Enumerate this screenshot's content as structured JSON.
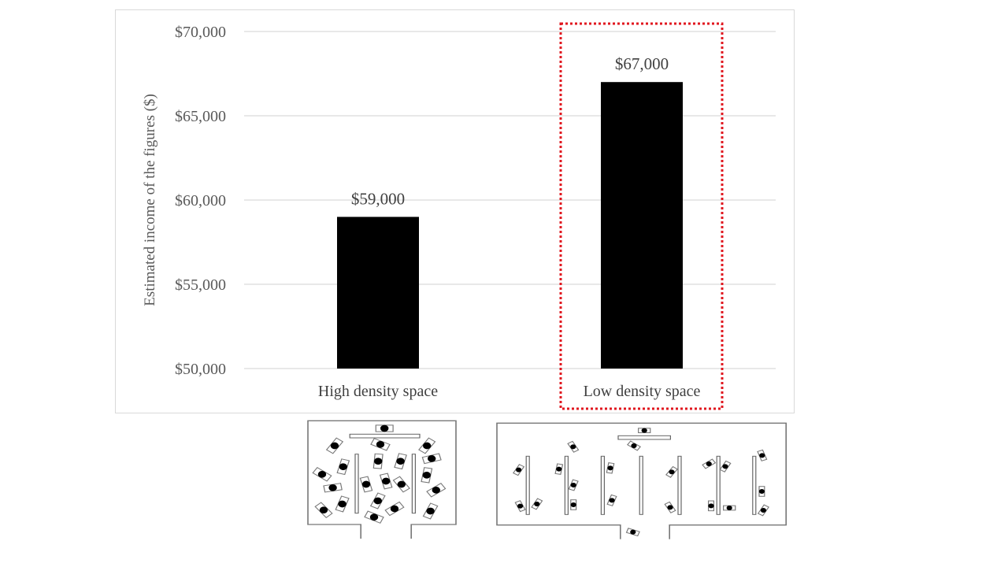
{
  "chart_data": {
    "type": "bar",
    "title": "",
    "xlabel": "",
    "ylabel": "Estimated income of the figures ($)",
    "categories": [
      "High density space",
      "Low density space"
    ],
    "values": [
      59000,
      67000
    ],
    "data_labels": [
      "$59,000",
      "$67,000"
    ],
    "ylim": [
      50000,
      70000
    ],
    "yticks": [
      50000,
      55000,
      60000,
      65000,
      70000
    ],
    "ytick_labels": [
      "$50,000",
      "$55,000",
      "$60,000",
      "$65,000",
      "$70,000"
    ],
    "grid": true,
    "legend": "none",
    "bar_color": "#000000",
    "gridline_color": "#d9d9d9",
    "highlight": {
      "category": "Low density space",
      "style": "dotted",
      "color": "#e0171f"
    }
  },
  "illustrations": {
    "high_density_plan": "floor plan with many closely spaced seated figures",
    "low_density_plan": "floor plan with few widely spaced seated figures"
  }
}
